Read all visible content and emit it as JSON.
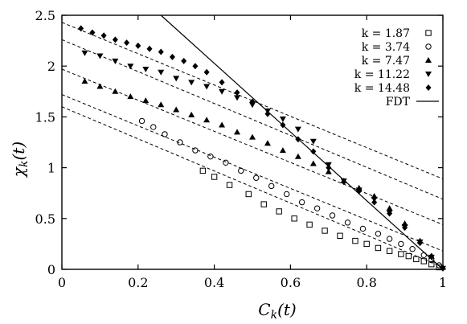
{
  "chart_data": {
    "type": "scatter",
    "xlabel": "C_k(t)",
    "ylabel": "χ_k(t)",
    "xlim": [
      0,
      1
    ],
    "ylim": [
      0,
      2.5
    ],
    "x_ticks": [
      "0",
      "0.2",
      "0.4",
      "0.6",
      "0.8",
      "1"
    ],
    "y_ticks": [
      "0",
      "0.5",
      "1",
      "1.5",
      "2",
      "2.5"
    ],
    "grid": false,
    "legend_position": "top-right",
    "series": [
      {
        "name": "k = 1.87",
        "marker": "square",
        "x": [
          0.37,
          0.4,
          0.44,
          0.49,
          0.53,
          0.57,
          0.61,
          0.65,
          0.69,
          0.73,
          0.77,
          0.8,
          0.83,
          0.86,
          0.89,
          0.91,
          0.93,
          0.95,
          0.97,
          0.99
        ],
        "y": [
          0.97,
          0.91,
          0.83,
          0.74,
          0.64,
          0.57,
          0.5,
          0.44,
          0.38,
          0.33,
          0.28,
          0.25,
          0.21,
          0.18,
          0.15,
          0.13,
          0.1,
          0.08,
          0.05,
          0.02
        ]
      },
      {
        "name": "k = 3.74",
        "marker": "circle",
        "x": [
          0.21,
          0.24,
          0.27,
          0.31,
          0.35,
          0.39,
          0.43,
          0.47,
          0.51,
          0.55,
          0.59,
          0.63,
          0.67,
          0.71,
          0.75,
          0.79,
          0.83,
          0.86,
          0.89,
          0.92,
          0.95,
          0.97,
          0.99
        ],
        "y": [
          1.46,
          1.4,
          1.33,
          1.25,
          1.17,
          1.11,
          1.05,
          0.97,
          0.9,
          0.82,
          0.74,
          0.66,
          0.6,
          0.53,
          0.46,
          0.4,
          0.35,
          0.3,
          0.25,
          0.2,
          0.14,
          0.09,
          0.04
        ]
      },
      {
        "name": "k = 7.47",
        "marker": "triangle-up",
        "x": [
          0.06,
          0.1,
          0.14,
          0.18,
          0.22,
          0.26,
          0.3,
          0.34,
          0.38,
          0.42,
          0.46,
          0.5,
          0.54,
          0.58,
          0.62,
          0.66,
          0.7,
          0.74,
          0.78,
          0.82,
          0.86,
          0.9,
          0.94,
          0.97,
          1.0
        ],
        "y": [
          1.85,
          1.8,
          1.75,
          1.7,
          1.66,
          1.62,
          1.57,
          1.52,
          1.47,
          1.42,
          1.35,
          1.3,
          1.24,
          1.17,
          1.11,
          1.04,
          0.96,
          0.87,
          0.8,
          0.72,
          0.6,
          0.45,
          0.28,
          0.13,
          0.02
        ]
      },
      {
        "name": "k = 11.22",
        "marker": "triangle-down",
        "x": [
          0.06,
          0.1,
          0.14,
          0.18,
          0.22,
          0.26,
          0.3,
          0.34,
          0.38,
          0.42,
          0.46,
          0.5,
          0.54,
          0.58,
          0.62,
          0.66,
          0.7,
          0.74,
          0.78,
          0.82,
          0.86,
          0.9,
          0.94,
          0.97,
          1.0
        ],
        "y": [
          2.13,
          2.1,
          2.05,
          2.0,
          1.97,
          1.94,
          1.88,
          1.84,
          1.8,
          1.75,
          1.69,
          1.62,
          1.56,
          1.48,
          1.38,
          1.26,
          1.03,
          0.87,
          0.78,
          0.69,
          0.56,
          0.42,
          0.27,
          0.12,
          0.01
        ]
      },
      {
        "name": "k = 14.48",
        "marker": "diamond",
        "x": [
          0.05,
          0.08,
          0.11,
          0.14,
          0.17,
          0.2,
          0.23,
          0.26,
          0.29,
          0.32,
          0.35,
          0.38,
          0.42,
          0.46,
          0.5,
          0.54,
          0.58,
          0.62,
          0.66,
          0.7,
          0.74,
          0.78,
          0.82,
          0.86,
          0.9,
          0.94,
          0.97,
          1.0
        ],
        "y": [
          2.37,
          2.33,
          2.3,
          2.26,
          2.23,
          2.2,
          2.17,
          2.14,
          2.09,
          2.05,
          2.0,
          1.94,
          1.84,
          1.74,
          1.65,
          1.53,
          1.42,
          1.28,
          1.16,
          1.0,
          0.86,
          0.77,
          0.66,
          0.55,
          0.41,
          0.26,
          0.13,
          0.01
        ]
      }
    ],
    "fit_lines": [
      {
        "x": [
          0,
          1
        ],
        "y": [
          1.6,
          0.02
        ]
      },
      {
        "x": [
          0,
          1
        ],
        "y": [
          1.72,
          0.18
        ]
      },
      {
        "x": [
          0,
          1
        ],
        "y": [
          1.97,
          0.44
        ]
      },
      {
        "x": [
          0,
          1
        ],
        "y": [
          2.26,
          0.69
        ]
      },
      {
        "x": [
          0,
          1
        ],
        "y": [
          2.43,
          0.89
        ]
      }
    ],
    "fdt": {
      "name": "FDT",
      "x": [
        0.26,
        1
      ],
      "y": [
        2.5,
        0
      ]
    }
  }
}
